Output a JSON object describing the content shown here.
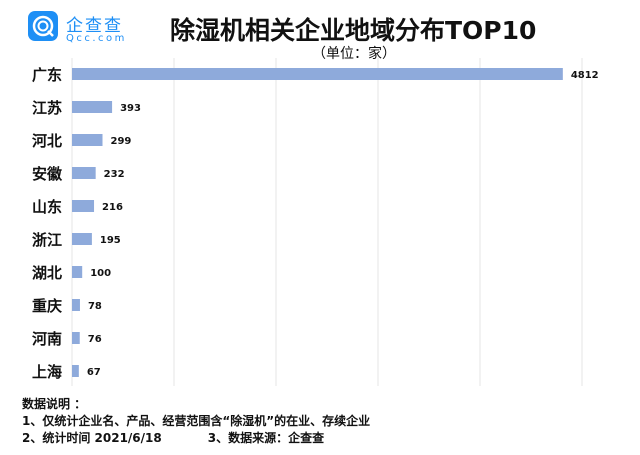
{
  "logo": {
    "cn": "企查查",
    "en": "Qcc.com"
  },
  "chart_data": {
    "type": "bar",
    "orientation": "horizontal",
    "title": "除湿机相关企业地域分布TOP10",
    "subtitle": "（单位：家）",
    "categories": [
      "广东",
      "江苏",
      "河北",
      "安徽",
      "山东",
      "浙江",
      "湖北",
      "重庆",
      "河南",
      "上海"
    ],
    "values": [
      4812,
      393,
      299,
      232,
      216,
      195,
      100,
      78,
      76,
      67
    ],
    "xlim": [
      0,
      5000
    ],
    "grid": true,
    "bar_color": "#8eaadb"
  },
  "notes": {
    "heading": "数据说明 ：",
    "line1": "1、仅统计企业名、产品、经营范围含“除湿机”的在业、存续企业",
    "line2a": "2、统计时间 2021/6/18",
    "line2b": "3、数据来源：企查查"
  }
}
